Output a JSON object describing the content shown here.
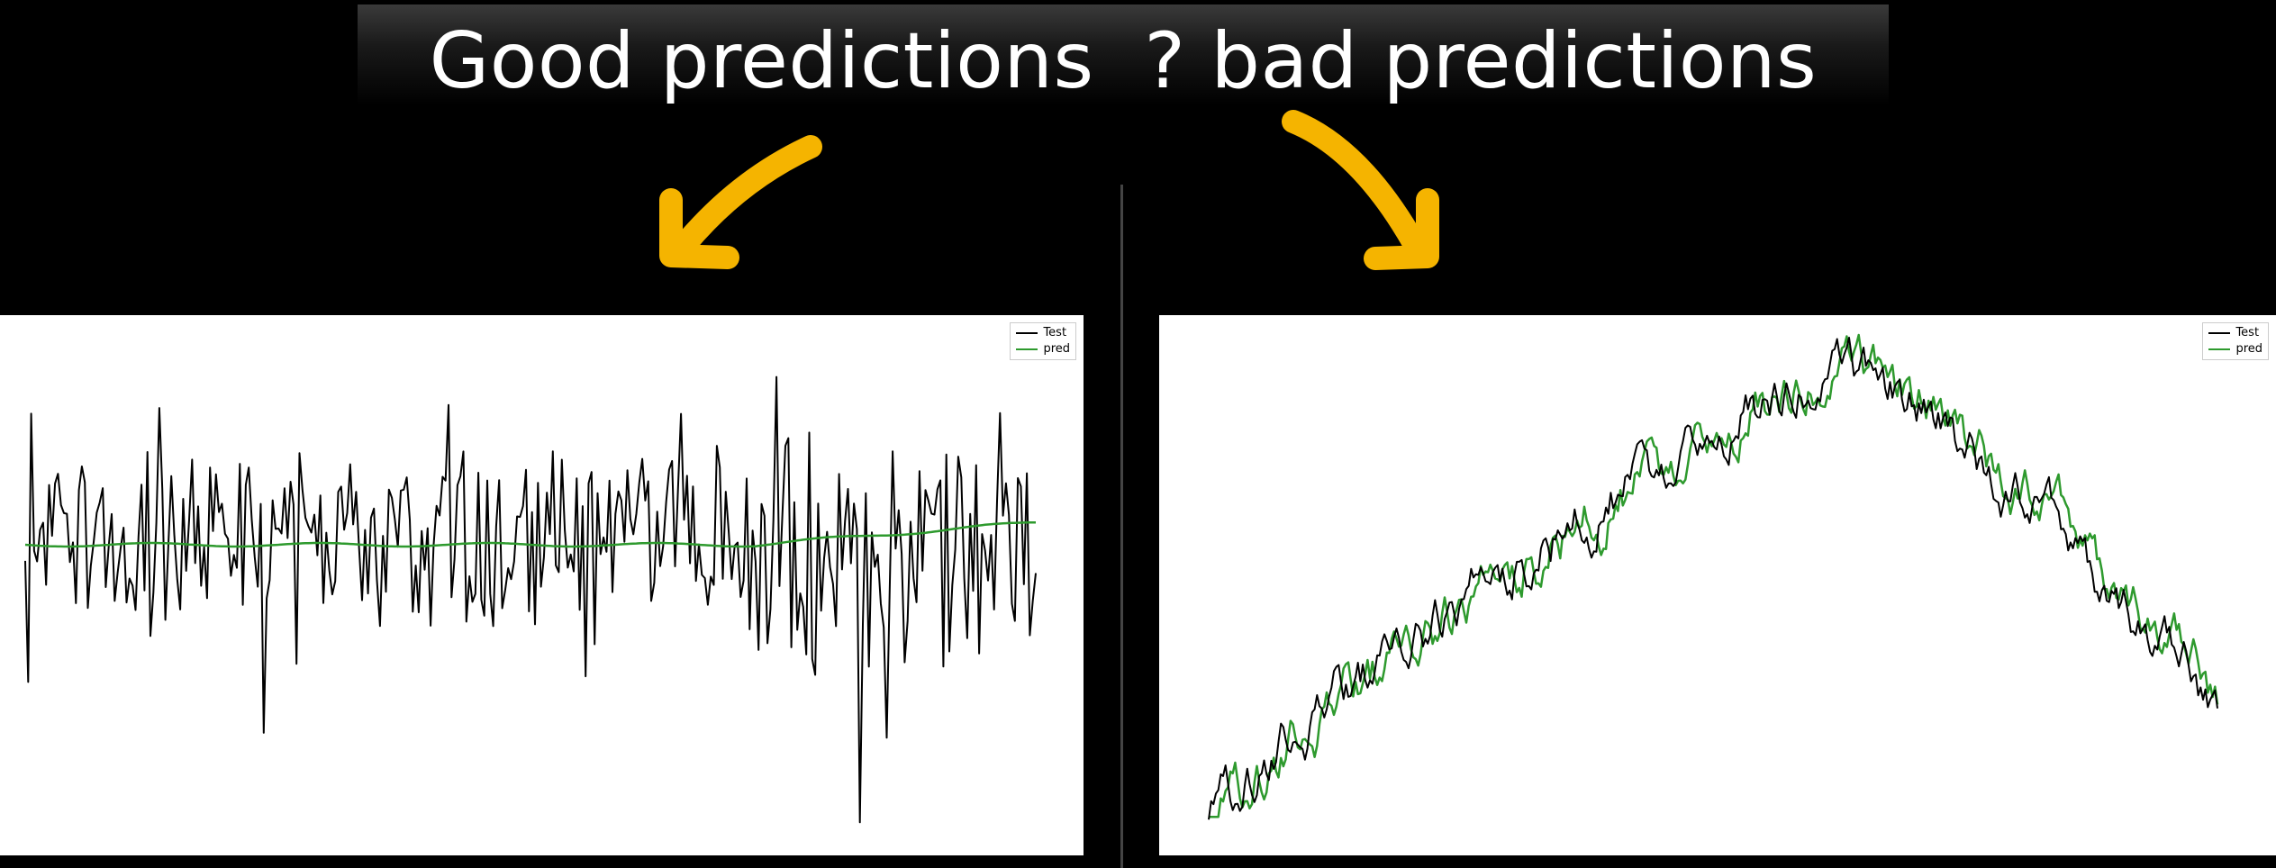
{
  "title": "Good predictions  ? bad predictions",
  "colors": {
    "arrow": "#f5b400",
    "test": "#000000",
    "pred": "#2e9a2e"
  },
  "chart_data": [
    {
      "type": "line",
      "panel": "left",
      "grid": false,
      "legend_position": "top-right",
      "series": [
        {
          "name": "Test",
          "color": "#000000",
          "values": []
        },
        {
          "name": "pred",
          "color": "#2e9a2e",
          "values": []
        }
      ]
    },
    {
      "type": "line",
      "panel": "right",
      "grid": false,
      "legend_position": "top-right",
      "series": [
        {
          "name": "Test",
          "color": "#000000",
          "values": []
        },
        {
          "name": "pred",
          "color": "#2e9a2e",
          "values": []
        }
      ]
    }
  ]
}
